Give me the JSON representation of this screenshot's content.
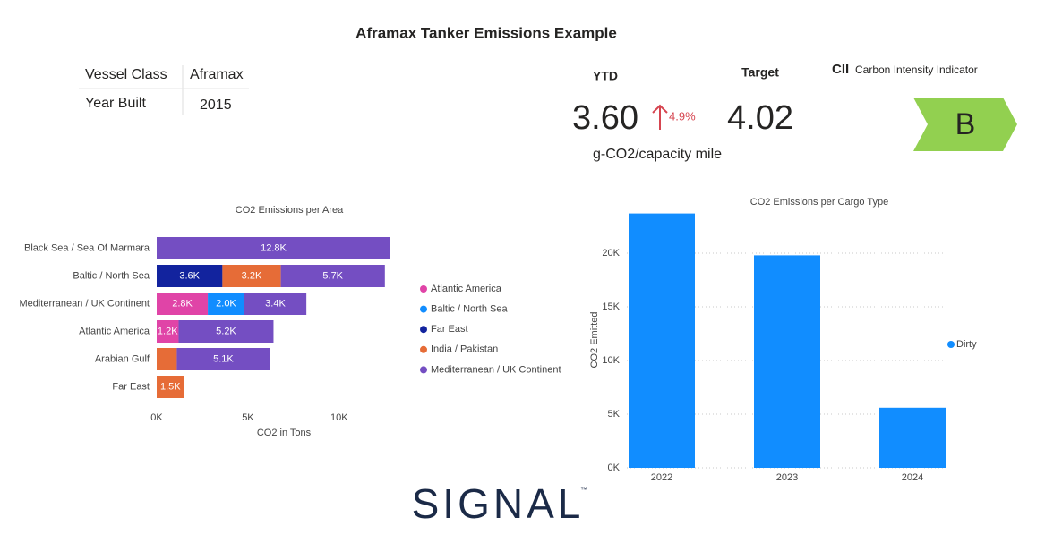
{
  "title": "Aframax Tanker Emissions Example",
  "vessel_table": {
    "rows": [
      [
        "Vessel Class",
        "Aframax"
      ],
      [
        "Year Built",
        "2015"
      ]
    ]
  },
  "kpis": {
    "ytd_label": "YTD",
    "ytd_value": "3.60",
    "change": "4.9%",
    "target_label": "Target",
    "target_value": "4.02",
    "unit": "g-CO2/capacity mile"
  },
  "cii": {
    "abbr": "CII",
    "label": "Carbon Intensity Indicator",
    "grade": "B"
  },
  "logo": {
    "text": "SIGNAL",
    "mark": "™"
  },
  "chart_data": [
    {
      "type": "hbar_stacked",
      "title": "CO2 Emissions per Area",
      "xlabel": "CO2 in Tons",
      "categories": [
        "Black Sea / Sea Of Marmara",
        "Baltic / North Sea",
        "Mediterranean / UK Continent",
        "Atlantic America",
        "Arabian Gulf",
        "Far East"
      ],
      "series": [
        {
          "name": "Atlantic America",
          "color": "#e044a7",
          "values": [
            null,
            null,
            2800,
            1200,
            null,
            null
          ],
          "value_labels": [
            null,
            null,
            "2.8K",
            "1.2K",
            null,
            null
          ]
        },
        {
          "name": "Baltic / North Sea",
          "color": "#118dff",
          "values": [
            null,
            null,
            2000,
            null,
            null,
            null
          ],
          "value_labels": [
            null,
            null,
            "2.0K",
            null,
            null,
            null
          ]
        },
        {
          "name": "Far East",
          "color": "#12239e",
          "values": [
            null,
            3600,
            null,
            null,
            null,
            null
          ],
          "value_labels": [
            null,
            "3.6K",
            null,
            null,
            null,
            null
          ]
        },
        {
          "name": "India / Pakistan",
          "color": "#e66c37",
          "values": [
            null,
            3200,
            null,
            null,
            1100,
            1500
          ],
          "value_labels": [
            null,
            "3.2K",
            null,
            null,
            null,
            "1.5K"
          ]
        },
        {
          "name": "Mediterranean / UK Continent",
          "color": "#744ec2",
          "values": [
            12800,
            5700,
            3400,
            5200,
            5100,
            null
          ],
          "value_labels": [
            "12.8K",
            "5.7K",
            "3.4K",
            "5.2K",
            "5.1K",
            null
          ]
        }
      ],
      "xlim": [
        0,
        13000
      ],
      "xticks": [
        {
          "value": 0,
          "label": "0K"
        },
        {
          "value": 5000,
          "label": "5K"
        },
        {
          "value": 10000,
          "label": "10K"
        }
      ]
    },
    {
      "type": "bar",
      "title": "CO2 Emissions per Cargo Type",
      "ylabel": "CO2 Emitted",
      "categories": [
        "2022",
        "2023",
        "2024"
      ],
      "series": [
        {
          "name": "Dirty",
          "color": "#118dff",
          "values": [
            23700,
            19800,
            5600
          ]
        }
      ],
      "ylim": [
        0,
        24000
      ],
      "yticks": [
        {
          "value": 0,
          "label": "0K"
        },
        {
          "value": 5000,
          "label": "5K"
        },
        {
          "value": 10000,
          "label": "10K"
        },
        {
          "value": 15000,
          "label": "15K"
        },
        {
          "value": 20000,
          "label": "20K"
        }
      ],
      "grid": true
    }
  ]
}
